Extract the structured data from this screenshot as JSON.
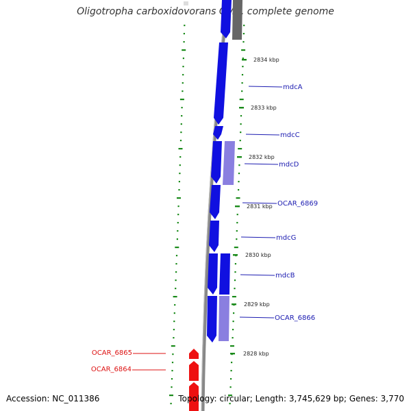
{
  "title": "Oligotropha carboxidovorans OM5, complete genome",
  "footer": {
    "accession": "Accession: NC_011386",
    "summary": "Topology: circular; Length: 3,745,629 bp; Genes: 3,770"
  },
  "colors": {
    "forward_gene": "#1010e0",
    "forward_cds": "#8a7fe0",
    "reverse_gene": "#ee1111",
    "backbone": "#888888",
    "tick": "#1a8a1a",
    "forward_label": "#1a1ab0",
    "reverse_label": "#dd1111"
  },
  "ticks": [
    {
      "label": "2834 kbp"
    },
    {
      "label": "2833 kbp"
    },
    {
      "label": "2832 kbp"
    },
    {
      "label": "2831 kbp"
    },
    {
      "label": "2830 kbp"
    },
    {
      "label": "2829 kbp"
    },
    {
      "label": "2828 kbp"
    }
  ],
  "genes_forward": [
    {
      "label": "mdcA"
    },
    {
      "label": "mdcC"
    },
    {
      "label": "mdcD"
    },
    {
      "label": "OCAR_6869"
    },
    {
      "label": "mdcG"
    },
    {
      "label": "mdcB"
    },
    {
      "label": "OCAR_6866"
    }
  ],
  "genes_reverse": [
    {
      "label": "OCAR_6865"
    },
    {
      "label": "OCAR_6864"
    }
  ]
}
